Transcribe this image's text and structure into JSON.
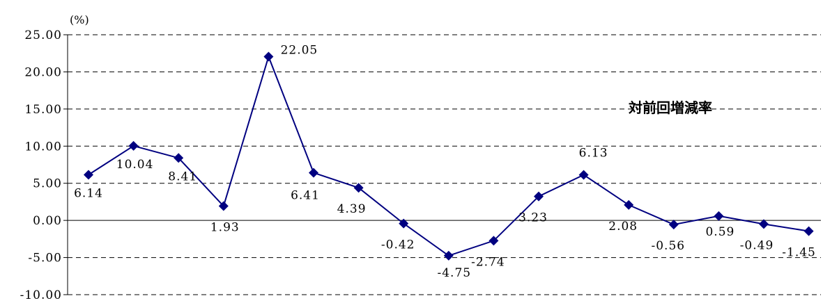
{
  "chart_data": {
    "type": "line",
    "unit": "(%)",
    "series_label": "対前回増減率",
    "ylim": [
      -10,
      25
    ],
    "ytick_values": [
      25,
      20,
      15,
      10,
      5,
      0,
      -5,
      -10
    ],
    "ytick_labels": [
      "25.00",
      "20.00",
      "15.00",
      "10.00",
      "5.00",
      "0.00",
      "-5.00",
      "-10.00"
    ],
    "grid": true,
    "series": [
      {
        "values": [
          6.14,
          10.04,
          8.41,
          1.93,
          22.05,
          6.41,
          4.39,
          -0.42,
          -4.75,
          -2.74,
          3.23,
          6.13,
          2.08,
          -0.56,
          0.59,
          -0.49,
          -1.45
        ],
        "labels": [
          "6.14",
          "10.04",
          "8.41",
          "1.93",
          "22.05",
          "6.41",
          "4.39",
          "-0.42",
          "-4.75",
          "-2.74",
          "3.23",
          "6.13",
          "2.08",
          "-0.56",
          "0.59",
          "-0.49",
          "-1.45"
        ]
      }
    ],
    "colors": {
      "line": "#000080",
      "marker": "#000080",
      "grid": "#000000",
      "text": "#000000"
    }
  }
}
